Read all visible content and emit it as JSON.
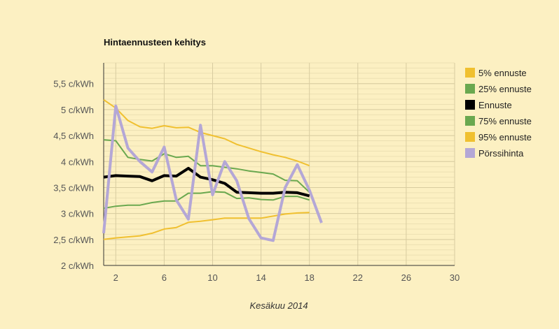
{
  "chart_data": {
    "type": "line",
    "title": "Hintaennusteen kehitys",
    "xlabel": "Kesäkuu 2014",
    "ylabel": "",
    "xlim": [
      1,
      30
    ],
    "ylim": [
      2,
      5.9
    ],
    "x_ticks": [
      2,
      6,
      10,
      14,
      18,
      22,
      26,
      30
    ],
    "x_tick_labels": [
      "2",
      "6",
      "10",
      "14",
      "18",
      "22",
      "26",
      "30"
    ],
    "y_ticks": [
      2,
      2.5,
      3,
      3.5,
      4,
      4.5,
      5,
      5.5
    ],
    "y_tick_labels": [
      "2 c/kWh",
      "2,5 c/kWh",
      "3 c/kWh",
      "3,5 c/kWh",
      "4 c/kWh",
      "4,5 c/kWh",
      "5 c/kWh",
      "5,5 c/kWh"
    ],
    "grid": true,
    "legend_position": "right",
    "x": [
      1,
      2,
      3,
      4,
      5,
      6,
      7,
      8,
      9,
      10,
      11,
      12,
      13,
      14,
      15,
      16,
      17,
      18,
      19
    ],
    "series": [
      {
        "name": "5% ennuste",
        "color": "#f0c030",
        "width": 2,
        "values": [
          2.5,
          2.53,
          2.55,
          2.57,
          2.62,
          2.7,
          2.73,
          2.83,
          2.85,
          2.88,
          2.91,
          2.91,
          2.91,
          2.91,
          2.95,
          2.99,
          3.01,
          3.02,
          null
        ]
      },
      {
        "name": "25% ennuste",
        "color": "#6aa84f",
        "width": 2,
        "values": [
          3.1,
          3.14,
          3.16,
          3.16,
          3.21,
          3.24,
          3.24,
          3.39,
          3.39,
          3.42,
          3.41,
          3.29,
          3.3,
          3.27,
          3.26,
          3.33,
          3.33,
          3.26,
          null
        ]
      },
      {
        "name": "Ennuste",
        "color": "#000000",
        "width": 4,
        "values": [
          3.7,
          3.73,
          3.72,
          3.71,
          3.63,
          3.73,
          3.72,
          3.87,
          3.7,
          3.65,
          3.58,
          3.41,
          3.4,
          3.39,
          3.39,
          3.41,
          3.4,
          3.34,
          null
        ]
      },
      {
        "name": "75% ennuste",
        "color": "#6aa84f",
        "width": 2,
        "values": [
          4.42,
          4.4,
          4.08,
          4.04,
          4.01,
          4.15,
          4.08,
          4.1,
          3.92,
          3.92,
          3.89,
          3.86,
          3.82,
          3.79,
          3.76,
          3.64,
          3.63,
          3.41,
          null
        ]
      },
      {
        "name": "95% ennuste",
        "color": "#f0c030",
        "width": 2,
        "values": [
          5.19,
          5.03,
          4.79,
          4.67,
          4.64,
          4.69,
          4.65,
          4.66,
          4.56,
          4.5,
          4.44,
          4.33,
          4.26,
          4.19,
          4.13,
          4.08,
          4.01,
          3.92,
          null
        ]
      },
      {
        "name": "Pörssihinta",
        "color": "#b4a7d6",
        "width": 4,
        "values": [
          2.62,
          5.07,
          4.26,
          4.0,
          3.8,
          4.28,
          3.26,
          2.89,
          4.7,
          3.36,
          4.0,
          3.63,
          2.9,
          2.53,
          2.48,
          3.5,
          3.94,
          3.45,
          2.82
        ]
      }
    ]
  }
}
